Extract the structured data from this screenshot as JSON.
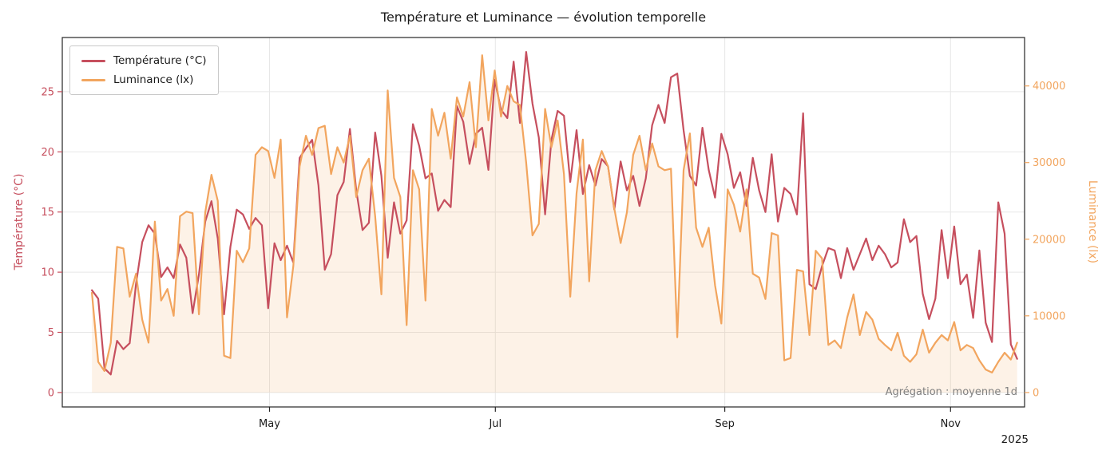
{
  "chart_data": {
    "type": "line",
    "title": "Température et Luminance — évolution temporelle",
    "xlabel": "",
    "ylabel_left": "Température (°C)",
    "ylabel_right": "Luminance (lx)",
    "annotation": "Agrégation : moyenne 1d",
    "x_offset_label": "2025",
    "x_tick_labels": [
      "May",
      "Jul",
      "Sep",
      "Nov"
    ],
    "x_tick_days": [
      48,
      109,
      171,
      232
    ],
    "x_domain": [
      -8,
      252
    ],
    "x_range_days": [
      0,
      250
    ],
    "x_note": "values evenly spaced in days across x_range_days; day 0 is mid-March 2025, daily-mean aggregation",
    "ylim_left": [
      -1.2,
      29.5
    ],
    "ylim_right": [
      -1884,
      46315
    ],
    "yticks_left": [
      0,
      5,
      10,
      15,
      20,
      25
    ],
    "yticks_right": [
      0,
      10000,
      20000,
      30000,
      40000
    ],
    "grid": true,
    "legend_position": "upper left",
    "background": "#ffffff",
    "series": [
      {
        "name": "Température (°C)",
        "axis": "left",
        "color": "#c64f5e",
        "fill": false,
        "values": [
          8.5,
          7.8,
          2.0,
          1.5,
          4.3,
          3.6,
          4.1,
          9.0,
          12.5,
          13.9,
          13.2,
          9.6,
          10.4,
          9.5,
          12.3,
          11.2,
          6.6,
          9.8,
          14.2,
          15.9,
          12.8,
          6.5,
          12.1,
          15.2,
          14.8,
          13.6,
          14.5,
          13.9,
          7.0,
          12.4,
          11.0,
          12.2,
          10.8,
          19.5,
          20.3,
          21.0,
          17.2,
          10.2,
          11.5,
          16.4,
          17.5,
          21.9,
          16.8,
          13.5,
          14.1,
          21.6,
          18.0,
          11.2,
          15.8,
          13.2,
          14.3,
          22.3,
          20.5,
          17.8,
          18.2,
          15.1,
          16.0,
          15.4,
          23.8,
          22.5,
          19.0,
          21.5,
          22.0,
          18.5,
          26.0,
          23.5,
          22.8,
          27.5,
          22.4,
          28.3,
          24.0,
          21.2,
          14.8,
          21.0,
          23.4,
          23.0,
          17.5,
          21.8,
          16.5,
          18.9,
          17.2,
          19.4,
          18.8,
          15.2,
          19.2,
          16.8,
          18.0,
          15.5,
          17.8,
          22.2,
          23.9,
          22.4,
          26.2,
          26.5,
          21.8,
          18.0,
          17.2,
          22.0,
          18.5,
          16.2,
          21.5,
          19.8,
          17.0,
          18.3,
          15.5,
          19.5,
          16.8,
          15.0,
          19.8,
          14.2,
          17.0,
          16.5,
          14.8,
          23.2,
          9.0,
          8.6,
          10.5,
          12.0,
          11.8,
          9.5,
          12.0,
          10.2,
          11.5,
          12.8,
          11.0,
          12.2,
          11.5,
          10.4,
          10.8,
          14.4,
          12.5,
          13.0,
          8.2,
          6.1,
          7.8,
          13.5,
          9.5,
          13.8,
          9.0,
          9.8,
          6.2,
          11.8,
          5.8,
          4.2,
          15.8,
          13.2,
          4.0,
          2.8
        ]
      },
      {
        "name": "Luminance (lx)",
        "axis": "right",
        "color": "#f2a55e",
        "fill": true,
        "fill_opacity": 0.15,
        "values": [
          13000,
          4000,
          2800,
          6500,
          19000,
          18800,
          12500,
          15500,
          9500,
          6500,
          22300,
          12000,
          13500,
          10000,
          23000,
          23600,
          23400,
          10200,
          23500,
          28400,
          25000,
          4800,
          4500,
          18500,
          17000,
          18800,
          31000,
          32000,
          31500,
          28000,
          33000,
          9800,
          16500,
          29500,
          33500,
          31000,
          34500,
          34800,
          28500,
          32000,
          30000,
          33500,
          25500,
          29000,
          30500,
          23000,
          12800,
          39400,
          28000,
          25500,
          8800,
          29000,
          26500,
          12000,
          37000,
          33500,
          36500,
          30500,
          38500,
          36000,
          40500,
          32000,
          44000,
          35500,
          42000,
          36000,
          40000,
          38000,
          37500,
          30000,
          20500,
          22000,
          37000,
          32000,
          35500,
          28500,
          12500,
          26000,
          33000,
          14500,
          29000,
          31500,
          29500,
          24000,
          19500,
          23500,
          31000,
          33500,
          29000,
          32500,
          29500,
          29000,
          29200,
          7200,
          29000,
          33800,
          21500,
          19000,
          21500,
          14000,
          9000,
          26500,
          24500,
          21000,
          26500,
          15500,
          15000,
          12200,
          20800,
          20500,
          4200,
          4500,
          16000,
          15800,
          7500,
          18500,
          17500,
          6200,
          6800,
          5800,
          9800,
          12800,
          7500,
          10500,
          9500,
          7000,
          6200,
          5500,
          7800,
          4800,
          4000,
          5000,
          8200,
          5200,
          6500,
          7500,
          6800,
          9200,
          5500,
          6200,
          5800,
          4200,
          3000,
          2600,
          4000,
          5200,
          4300,
          6500
        ]
      }
    ]
  }
}
